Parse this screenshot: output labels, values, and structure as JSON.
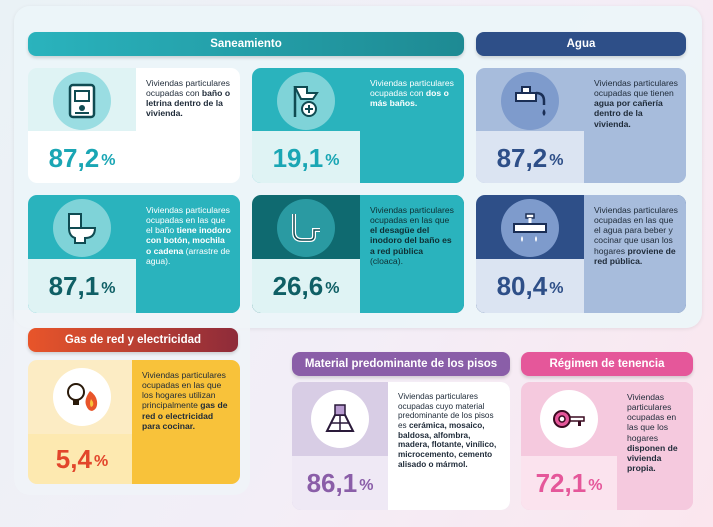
{
  "sections": {
    "saneamiento": "Saneamiento",
    "agua": "Agua",
    "gas": "Gas de red y electricidad",
    "pisos": "Material predominante de los pisos",
    "tenencia": "Régimen de tenencia"
  },
  "cards": {
    "bano": {
      "value": "87,2",
      "symbol": "%",
      "text_pre": "Viviendas particulares ocupadas con ",
      "text_bold": "baño o letrina dentro de la vivienda.",
      "text_post": "",
      "icon": "toilet-sign-icon"
    },
    "dos_banos": {
      "value": "19,1",
      "symbol": "%",
      "text_pre": "Viviendas particulares ocupadas con ",
      "text_bold": "dos o más baños.",
      "text_post": "",
      "icon": "shower-plus-icon"
    },
    "agua_canaria": {
      "value": "87,2",
      "symbol": "%",
      "text_pre": "Viviendas particulares ocupadas que tienen ",
      "text_bold": "agua por cañería dentro de la vivienda.",
      "text_post": "",
      "icon": "faucet-icon"
    },
    "inodoro": {
      "value": "87,1",
      "symbol": "%",
      "text_pre": "Viviendas particulares ocupadas en las que el baño ",
      "text_bold": "tiene inodoro con botón, mochila o cadena",
      "text_post": " (arrastre de agua).",
      "icon": "toilet-icon"
    },
    "desague": {
      "value": "26,6",
      "symbol": "%",
      "text_pre": "Viviendas particulares ocupadas en las que ",
      "text_bold": "el desagüe del inodoro del baño es a red pública",
      "text_post": " (cloaca).",
      "icon": "pipe-icon"
    },
    "agua_red": {
      "value": "80,4",
      "symbol": "%",
      "text_pre": "Viviendas particulares ocupadas en las que el agua para beber y cocinar que usan los hogares ",
      "text_bold": "proviene de red pública.",
      "text_post": "",
      "icon": "water-pipe-icon"
    },
    "gas": {
      "value": "5,4",
      "symbol": "%",
      "text_pre": "Viviendas particulares ocupadas en las que los hogares utilizan principalmente ",
      "text_bold": "gas de red o electricidad para cocinar.",
      "text_post": "",
      "icon": "bulb-flame-icon"
    },
    "pisos": {
      "value": "86,1",
      "symbol": "%",
      "text_pre": "Viviendas particulares ocupadas cuyo material predominante de los pisos es ",
      "text_bold": "cerámica, mosaico, baldosa, alfombra, madera, flotante, vinílico, microcemento, cemento alisado o mármol.",
      "text_post": "",
      "icon": "floor-icon"
    },
    "tenencia": {
      "value": "72,1",
      "symbol": "%",
      "text_pre": "Viviendas particulares ocupadas en las que los hogares ",
      "text_bold": "disponen de vivienda propia.",
      "text_post": "",
      "icon": "key-icon"
    }
  },
  "colors": {
    "teal_header": "#2ab3bd",
    "blue_header": "#2e4f88",
    "gas_header": "#e2452b",
    "pisos_header": "#8a5ea8",
    "tenencia_header": "#e5579a",
    "teal_value": "#1aa6b4",
    "dark_teal_value": "#0f5f65",
    "blue_value": "#2e4f88",
    "gas_value": "#e2452b",
    "pisos_value": "#8a5ea8",
    "tenencia_value": "#e5579a"
  }
}
